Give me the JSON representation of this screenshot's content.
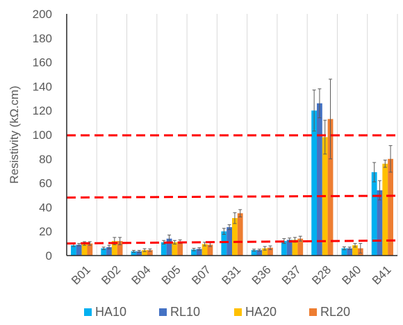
{
  "chart_data": {
    "type": "bar",
    "title": "",
    "xlabel": "",
    "ylabel": "Resistivity (kΩ.cm)",
    "ylim": [
      0,
      200
    ],
    "yticks": [
      0,
      20,
      40,
      60,
      80,
      100,
      120,
      140,
      160,
      180,
      200
    ],
    "grid": "vertical gridlines between categories",
    "legend_position": "bottom",
    "categories": [
      "B01",
      "B02",
      "B04",
      "B05",
      "B07",
      "B31",
      "B36",
      "B37",
      "B28",
      "B40",
      "B41"
    ],
    "series": [
      {
        "name": "HA10",
        "color": "#00B0F0",
        "values": [
          8.5,
          6,
          3.5,
          11,
          5,
          20,
          4.5,
          12,
          120,
          6,
          69
        ],
        "errors": [
          1,
          1,
          0.8,
          1.5,
          1,
          2.5,
          0.8,
          2,
          17,
          1.2,
          8
        ]
      },
      {
        "name": "RL10",
        "color": "#4472C4",
        "values": [
          9,
          7,
          3.5,
          14,
          5.5,
          23.5,
          4.5,
          13,
          126,
          6,
          54
        ],
        "errors": [
          1,
          1.5,
          0.8,
          3,
          1,
          2,
          0.8,
          1.5,
          12,
          1,
          8
        ]
      },
      {
        "name": "HA20",
        "color": "#FFC000",
        "values": [
          10,
          12,
          4.5,
          11,
          9.5,
          31,
          6,
          13,
          98,
          8.5,
          76
        ],
        "errors": [
          1.5,
          3,
          1.2,
          1.5,
          1.5,
          4.5,
          1.5,
          2,
          14,
          1.5,
          3
        ]
      },
      {
        "name": "RL20",
        "color": "#ED7D31",
        "values": [
          10,
          12,
          4.5,
          11.5,
          9,
          35,
          6.5,
          14,
          113,
          6,
          80
        ],
        "errors": [
          1.5,
          3,
          1,
          1.5,
          1.5,
          3,
          1.5,
          2,
          33,
          4,
          11
        ]
      }
    ],
    "threshold_lines": [
      {
        "y_left": 10,
        "y_right": 12.5,
        "color": "#FF0000",
        "style": "dashed"
      },
      {
        "y_left": 48,
        "y_right": 49.5,
        "color": "#FF0000",
        "style": "dashed"
      },
      {
        "y_left": 99.5,
        "y_right": 99.5,
        "color": "#FF0000",
        "style": "dashed"
      }
    ]
  }
}
